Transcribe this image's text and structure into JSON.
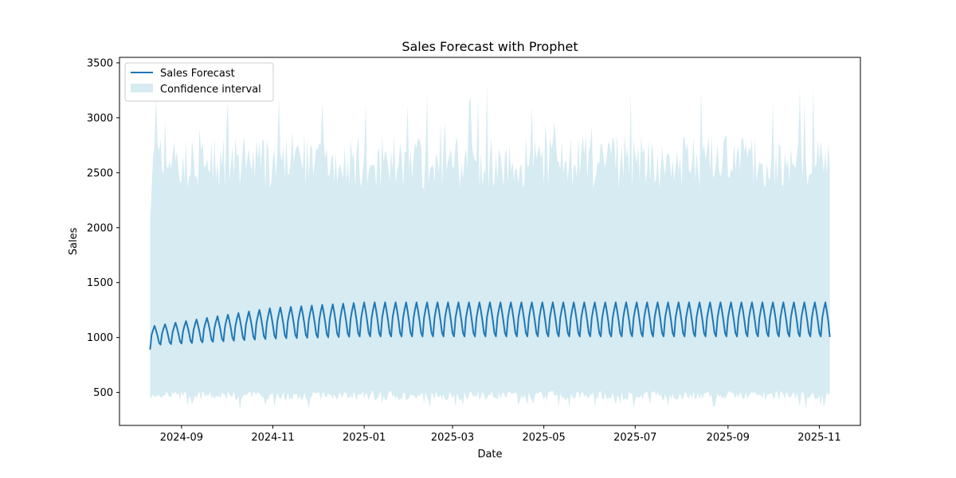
{
  "chart_data": {
    "type": "line",
    "title": "Sales Forecast with Prophet",
    "xlabel": "Date",
    "ylabel": "Sales",
    "x_range": [
      "2024-08-11",
      "2025-11-08"
    ],
    "x_ticks": [
      "2024-09",
      "2024-11",
      "2025-01",
      "2025-03",
      "2025-05",
      "2025-07",
      "2025-09",
      "2025-11"
    ],
    "y_ticks": [
      500,
      1000,
      1500,
      2000,
      2500,
      3000,
      3500
    ],
    "ylim": [
      200,
      3550
    ],
    "grid": false,
    "legend_position": "top-left",
    "series": [
      {
        "name": "Sales Forecast",
        "kind": "line",
        "color": "#1f77b4",
        "weekly_pattern": true,
        "start_value": 890,
        "trend": [
          {
            "date": "2024-08-11",
            "low": 930,
            "high": 1100
          },
          {
            "date": "2024-11-01",
            "low": 990,
            "high": 1270
          },
          {
            "date": "2025-01-01",
            "low": 1010,
            "high": 1320
          },
          {
            "date": "2025-11-08",
            "low": 1010,
            "high": 1320
          }
        ],
        "end_value": 1005
      },
      {
        "name": "Confidence interval",
        "kind": "band",
        "color": "#add8e6",
        "lower_typical": 470,
        "upper_typical": 2600,
        "lower_min": 340,
        "upper_max": 3350
      }
    ]
  }
}
